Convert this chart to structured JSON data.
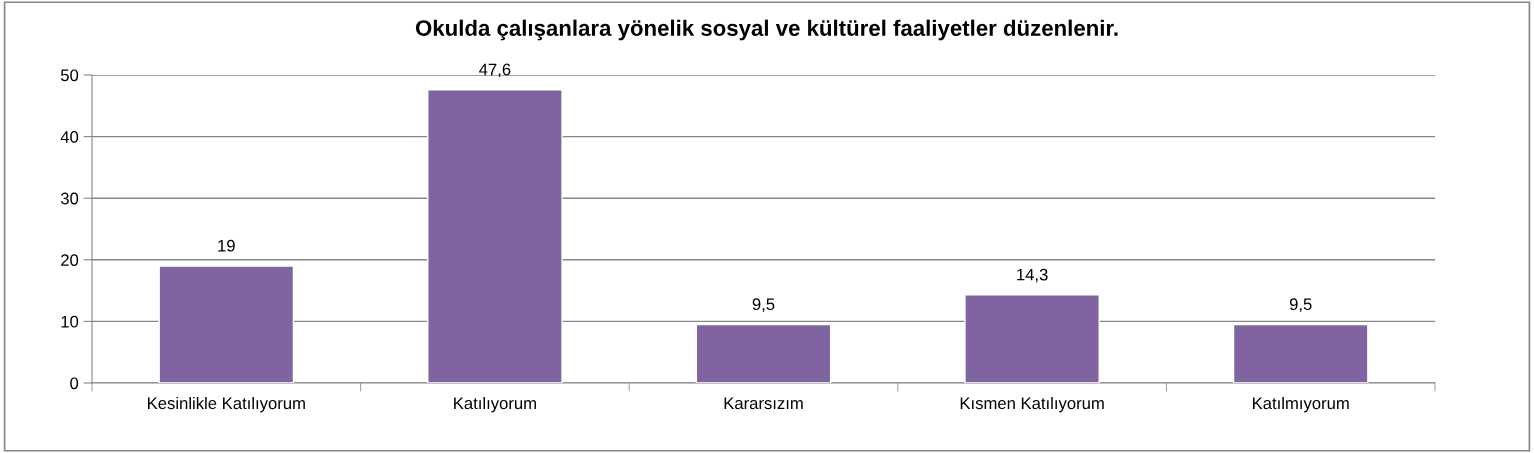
{
  "chart_data": {
    "type": "bar",
    "title": "Okulda çalışanlara yönelik sosyal ve kültürel faaliyetler düzenlenir.",
    "categories": [
      "Kesinlikle Katılıyorum",
      "Katılıyorum",
      "Kararsızım",
      "Kısmen Katılıyorum",
      "Katılmıyorum"
    ],
    "values": [
      19,
      47.6,
      9.5,
      14.3,
      9.5
    ],
    "value_labels": [
      "19",
      "47,6",
      "9,5",
      "14,3",
      "9,5"
    ],
    "color": "#8064a2",
    "ylim": [
      0,
      50
    ],
    "yticks": [
      0,
      10,
      20,
      30,
      40,
      50
    ],
    "grid": "y"
  }
}
